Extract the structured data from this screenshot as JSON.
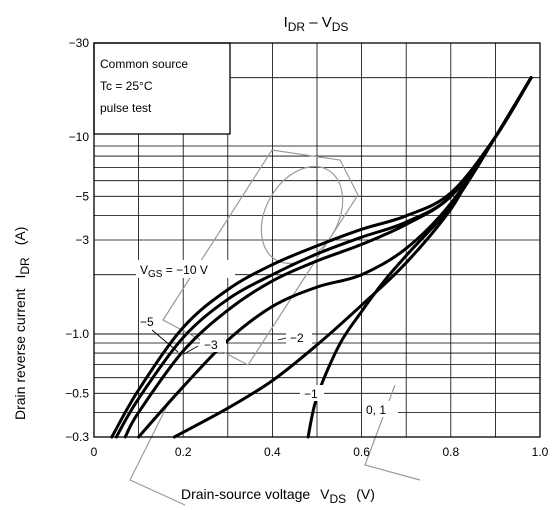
{
  "chart_data": {
    "type": "line",
    "title": {
      "main": "I",
      "main_sub": "DR",
      "sep": " – V",
      "sep_sub": "DS"
    },
    "xlabel": {
      "text": "Drain-source voltage",
      "sym": "V",
      "sym_sub": "DS",
      "unit": "(V)"
    },
    "ylabel": {
      "text": "Drain reverse current",
      "sym": "I",
      "sym_sub": "DR",
      "unit": "(A)"
    },
    "xlim": [
      0,
      1.0
    ],
    "ylim": [
      -0.3,
      -30
    ],
    "yscale": "log",
    "grid": true,
    "x_ticks": [
      {
        "v": 0,
        "label": "0"
      },
      {
        "v": 0.2,
        "label": "0.2"
      },
      {
        "v": 0.4,
        "label": "0.4"
      },
      {
        "v": 0.6,
        "label": "0.6"
      },
      {
        "v": 0.8,
        "label": "0.8"
      },
      {
        "v": 1.0,
        "label": "1.0"
      }
    ],
    "y_ticks": [
      {
        "v": 0.3,
        "label": "−0.3"
      },
      {
        "v": 0.5,
        "label": "−0.5"
      },
      {
        "v": 1,
        "label": "−1.0"
      },
      {
        "v": 3,
        "label": "−3"
      },
      {
        "v": 5,
        "label": "−5"
      },
      {
        "v": 10,
        "label": "−10"
      },
      {
        "v": 30,
        "label": "−30"
      }
    ],
    "conditions": [
      "Common source",
      "Tc = 25°C",
      "pulse test"
    ],
    "series": [
      {
        "name": "VGS = −10 V",
        "x": [
          0.04,
          0.1,
          0.2,
          0.3,
          0.4,
          0.5,
          0.6,
          0.7,
          0.8,
          0.9,
          0.98
        ],
        "y": [
          0.3,
          0.52,
          1.08,
          1.68,
          2.25,
          2.8,
          3.4,
          3.98,
          5.2,
          10.0,
          20.0
        ]
      },
      {
        "name": "−5",
        "x": [
          0.05,
          0.1,
          0.2,
          0.3,
          0.4,
          0.5,
          0.6,
          0.7,
          0.8,
          0.9,
          0.98
        ],
        "y": [
          0.3,
          0.47,
          0.96,
          1.5,
          2.0,
          2.55,
          3.1,
          3.7,
          5.0,
          10.0,
          20.0
        ]
      },
      {
        "name": "−3",
        "x": [
          0.07,
          0.1,
          0.2,
          0.3,
          0.4,
          0.5,
          0.6,
          0.7,
          0.8,
          0.9,
          0.98
        ],
        "y": [
          0.3,
          0.4,
          0.82,
          1.32,
          1.86,
          2.35,
          2.85,
          3.6,
          5.0,
          10.0,
          20.0
        ]
      },
      {
        "name": "−2",
        "x": [
          0.1,
          0.2,
          0.3,
          0.4,
          0.5,
          0.6,
          0.7,
          0.8,
          0.9,
          0.98
        ],
        "y": [
          0.3,
          0.54,
          0.93,
          1.38,
          1.73,
          2.0,
          2.72,
          4.6,
          10.0,
          20.0
        ]
      },
      {
        "name": "−1",
        "x": [
          0.18,
          0.3,
          0.4,
          0.5,
          0.6,
          0.7,
          0.8,
          0.85,
          0.9,
          0.98
        ],
        "y": [
          0.3,
          0.42,
          0.58,
          0.88,
          1.4,
          2.3,
          4.3,
          6.8,
          10.0,
          20.0
        ]
      },
      {
        "name": "0, 1",
        "x": [
          0.48,
          0.5,
          0.55,
          0.6,
          0.65,
          0.7,
          0.75,
          0.8,
          0.85,
          0.9,
          0.98
        ],
        "y": [
          0.3,
          0.48,
          0.88,
          1.3,
          1.85,
          2.5,
          3.3,
          4.4,
          6.5,
          10.0,
          20.0
        ]
      }
    ]
  }
}
